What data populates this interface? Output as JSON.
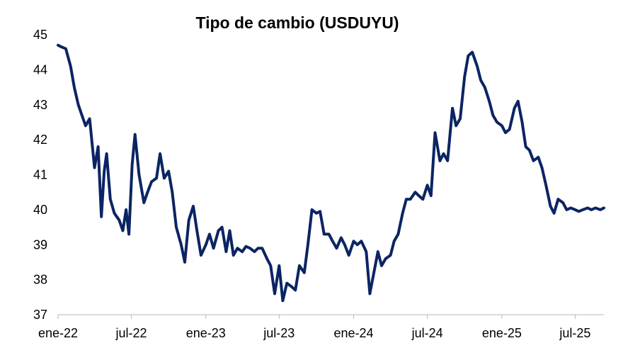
{
  "chart_data": {
    "type": "line",
    "title": "Tipo de cambio (USDUYU)",
    "xlabel": "",
    "ylabel": "",
    "ylim": [
      37,
      45
    ],
    "yticks": [
      37,
      38,
      39,
      40,
      41,
      42,
      43,
      44,
      45
    ],
    "xlim": [
      "2022-01-01",
      "2025-09-10"
    ],
    "xticks": [
      {
        "date": "2022-01-01",
        "label": "ene-22"
      },
      {
        "date": "2022-07-01",
        "label": "jul-22"
      },
      {
        "date": "2023-01-01",
        "label": "ene-23"
      },
      {
        "date": "2023-07-01",
        "label": "jul-23"
      },
      {
        "date": "2024-01-01",
        "label": "ene-24"
      },
      {
        "date": "2024-07-01",
        "label": "jul-24"
      },
      {
        "date": "2025-01-01",
        "label": "ene-25"
      },
      {
        "date": "2025-07-01",
        "label": "jul-25"
      }
    ],
    "grid": false,
    "color": "#0b2463",
    "series": [
      {
        "name": "",
        "x": [
          "2022-01-01",
          "2022-01-10",
          "2022-01-20",
          "2022-02-01",
          "2022-02-10",
          "2022-02-20",
          "2022-03-01",
          "2022-03-10",
          "2022-03-20",
          "2022-04-01",
          "2022-04-10",
          "2022-04-18",
          "2022-04-25",
          "2022-05-01",
          "2022-05-10",
          "2022-05-20",
          "2022-06-01",
          "2022-06-10",
          "2022-06-18",
          "2022-06-25",
          "2022-07-03",
          "2022-07-10",
          "2022-07-20",
          "2022-08-01",
          "2022-08-10",
          "2022-08-20",
          "2022-09-01",
          "2022-09-10",
          "2022-09-20",
          "2022-10-01",
          "2022-10-10",
          "2022-10-20",
          "2022-11-01",
          "2022-11-10",
          "2022-11-20",
          "2022-12-01",
          "2022-12-10",
          "2022-12-20",
          "2023-01-01",
          "2023-01-10",
          "2023-01-20",
          "2023-02-01",
          "2023-02-10",
          "2023-02-20",
          "2023-03-01",
          "2023-03-10",
          "2023-03-20",
          "2023-04-01",
          "2023-04-10",
          "2023-04-20",
          "2023-05-01",
          "2023-05-10",
          "2023-05-20",
          "2023-06-01",
          "2023-06-10",
          "2023-06-20",
          "2023-07-01",
          "2023-07-10",
          "2023-07-20",
          "2023-08-01",
          "2023-08-10",
          "2023-08-20",
          "2023-09-01",
          "2023-09-10",
          "2023-09-20",
          "2023-10-01",
          "2023-10-10",
          "2023-10-20",
          "2023-11-01",
          "2023-11-10",
          "2023-11-20",
          "2023-12-01",
          "2023-12-10",
          "2023-12-20",
          "2024-01-01",
          "2024-01-10",
          "2024-01-20",
          "2024-02-01",
          "2024-02-10",
          "2024-02-20",
          "2024-03-01",
          "2024-03-10",
          "2024-03-20",
          "2024-04-01",
          "2024-04-10",
          "2024-04-20",
          "2024-05-01",
          "2024-05-10",
          "2024-05-20",
          "2024-06-01",
          "2024-06-10",
          "2024-06-20",
          "2024-07-01",
          "2024-07-10",
          "2024-07-20",
          "2024-08-01",
          "2024-08-10",
          "2024-08-20",
          "2024-09-01",
          "2024-09-10",
          "2024-09-20",
          "2024-10-01",
          "2024-10-10",
          "2024-10-20",
          "2024-11-01",
          "2024-11-10",
          "2024-11-20",
          "2024-12-01",
          "2024-12-10",
          "2024-12-20",
          "2025-01-01",
          "2025-01-10",
          "2025-01-20",
          "2025-02-01",
          "2025-02-10",
          "2025-02-20",
          "2025-03-01",
          "2025-03-10",
          "2025-03-20",
          "2025-04-01",
          "2025-04-10",
          "2025-04-20",
          "2025-05-01",
          "2025-05-10",
          "2025-05-20",
          "2025-06-01",
          "2025-06-10",
          "2025-06-20",
          "2025-07-01",
          "2025-07-10",
          "2025-07-20",
          "2025-08-01",
          "2025-08-10",
          "2025-08-20",
          "2025-09-01",
          "2025-09-10"
        ],
        "values": [
          44.7,
          44.65,
          44.6,
          44.1,
          43.5,
          43.0,
          42.7,
          42.4,
          42.6,
          41.2,
          41.8,
          39.8,
          41.1,
          41.6,
          40.3,
          39.9,
          39.7,
          39.4,
          40.0,
          39.3,
          41.3,
          42.15,
          41.0,
          40.2,
          40.5,
          40.8,
          40.9,
          41.6,
          40.9,
          41.1,
          40.5,
          39.5,
          39.0,
          38.5,
          39.7,
          40.1,
          39.4,
          38.7,
          39.0,
          39.3,
          38.9,
          39.4,
          39.5,
          38.8,
          39.4,
          38.7,
          38.9,
          38.8,
          38.95,
          38.9,
          38.8,
          38.9,
          38.9,
          38.6,
          38.4,
          37.6,
          38.4,
          37.4,
          37.9,
          37.8,
          37.7,
          38.4,
          38.2,
          39.0,
          40.0,
          39.9,
          39.95,
          39.3,
          39.3,
          39.1,
          38.9,
          39.2,
          39.0,
          38.7,
          39.1,
          39.0,
          39.1,
          38.8,
          37.6,
          38.2,
          38.8,
          38.4,
          38.6,
          38.7,
          39.1,
          39.3,
          39.9,
          40.3,
          40.3,
          40.5,
          40.4,
          40.3,
          40.7,
          40.4,
          42.2,
          41.4,
          41.6,
          41.4,
          42.9,
          42.4,
          42.6,
          43.8,
          44.4,
          44.5,
          44.1,
          43.7,
          43.5,
          43.1,
          42.7,
          42.5,
          42.4,
          42.2,
          42.3,
          42.9,
          43.1,
          42.5,
          41.8,
          41.7,
          41.4,
          41.5,
          41.2,
          40.7,
          40.1,
          39.9,
          40.3,
          40.2,
          40.0,
          40.05,
          40.0,
          39.95,
          40.0,
          40.05,
          40.0,
          40.05,
          40.0,
          40.05
        ]
      }
    ]
  }
}
